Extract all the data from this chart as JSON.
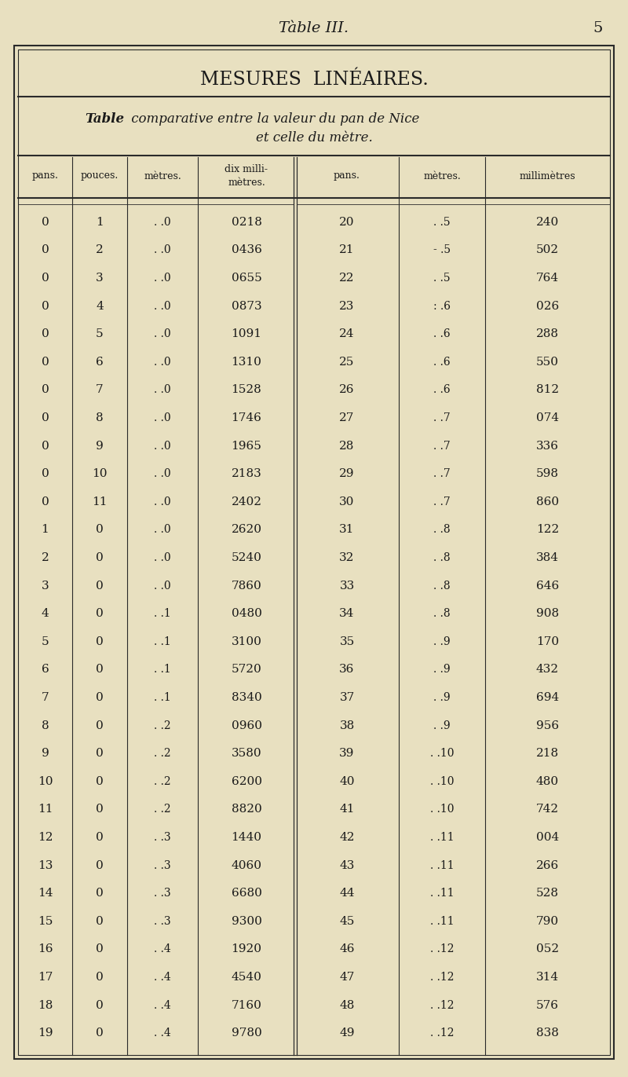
{
  "page_title": "Tàble III.",
  "page_number": "5",
  "main_title": "MESURES  LINÉAIRES.",
  "subtitle_line1": "Table comparative entre la valeur du pan de Nice",
  "subtitle_line2": "et celle du mètre.",
  "headers": [
    "pans.",
    "pouces.",
    "mètres.",
    "dix milli-\nmètres.",
    "pans.",
    "mètres.",
    "millimètres"
  ],
  "left_rows": [
    [
      "0",
      "1",
      ". .0",
      "0218"
    ],
    [
      "0",
      "2",
      ". .0",
      "0436"
    ],
    [
      "0",
      "3",
      ". .0",
      "0655"
    ],
    [
      "0",
      "4",
      ". .0",
      "0873"
    ],
    [
      "0",
      "5",
      ". .0",
      "1091"
    ],
    [
      "0",
      "6",
      ". .0",
      "1310"
    ],
    [
      "0",
      "7",
      ". .0",
      "1528"
    ],
    [
      "0",
      "8",
      ". .0",
      "1746"
    ],
    [
      "0",
      "9",
      ". .0",
      "1965"
    ],
    [
      "0",
      "10",
      ". .0",
      "2183"
    ],
    [
      "0",
      "11",
      ". .0",
      "2402"
    ],
    [
      "1",
      "0",
      ". .0",
      "2620"
    ],
    [
      "2",
      "0",
      ". .0",
      "5240"
    ],
    [
      "3",
      "0",
      ". .0",
      "7860"
    ],
    [
      "4",
      "0",
      ". .1",
      "0480"
    ],
    [
      "5",
      "0",
      ". .1",
      "3100"
    ],
    [
      "6",
      "0",
      ". .1",
      "5720"
    ],
    [
      "7",
      "0",
      ". .1",
      "8340"
    ],
    [
      "8",
      "0",
      ". .2",
      "0960"
    ],
    [
      "9",
      "0",
      ". .2",
      "3580"
    ],
    [
      "10",
      "0",
      ". .2",
      "6200"
    ],
    [
      "11",
      "0",
      ". .2",
      "8820"
    ],
    [
      "12",
      "0",
      ". .3",
      "1440"
    ],
    [
      "13",
      "0",
      ". .3",
      "4060"
    ],
    [
      "14",
      "0",
      ". .3",
      "6680"
    ],
    [
      "15",
      "0",
      ". .3",
      "9300"
    ],
    [
      "16",
      "0",
      ". .4",
      "1920"
    ],
    [
      "17",
      "0",
      ". .4",
      "4540"
    ],
    [
      "18",
      "0",
      ". .4",
      "7160"
    ],
    [
      "19",
      "0",
      ". .4",
      "9780"
    ]
  ],
  "right_rows": [
    [
      "20",
      ". .5",
      "240"
    ],
    [
      "21",
      "- .5",
      "502"
    ],
    [
      "22",
      ". .5",
      "764"
    ],
    [
      "23",
      ": .6",
      "026"
    ],
    [
      "24",
      ". .6",
      "288"
    ],
    [
      "25",
      ". .6",
      "550"
    ],
    [
      "26",
      ". .6",
      "812"
    ],
    [
      "27",
      ". .7",
      "074"
    ],
    [
      "28",
      ". .7",
      "336"
    ],
    [
      "29",
      ". .7",
      "598"
    ],
    [
      "30",
      ". .7",
      "860"
    ],
    [
      "31",
      ". .8",
      "122"
    ],
    [
      "32",
      ". .8",
      "384"
    ],
    [
      "33",
      ". .8",
      "646"
    ],
    [
      "34",
      ". .8",
      "908"
    ],
    [
      "35",
      ". .9",
      "170"
    ],
    [
      "36",
      ". .9",
      "432"
    ],
    [
      "37",
      ". .9",
      "694"
    ],
    [
      "38",
      ". .9",
      "956"
    ],
    [
      "39",
      ". .10",
      "218"
    ],
    [
      "40",
      ". .10",
      "480"
    ],
    [
      "41",
      ". .10",
      "742"
    ],
    [
      "42",
      ". .11",
      "004"
    ],
    [
      "43",
      ". .11",
      "266"
    ],
    [
      "44",
      ". .11",
      "528"
    ],
    [
      "45",
      ". .11",
      "790"
    ],
    [
      "46",
      ". .12",
      "052"
    ],
    [
      "47",
      ". .12",
      "314"
    ],
    [
      "48",
      ". .12",
      "576"
    ],
    [
      "49",
      ". .12",
      "838"
    ]
  ],
  "bg_color": "#e8e0c0",
  "text_color": "#1a1a1a",
  "line_color": "#2a2a2a"
}
